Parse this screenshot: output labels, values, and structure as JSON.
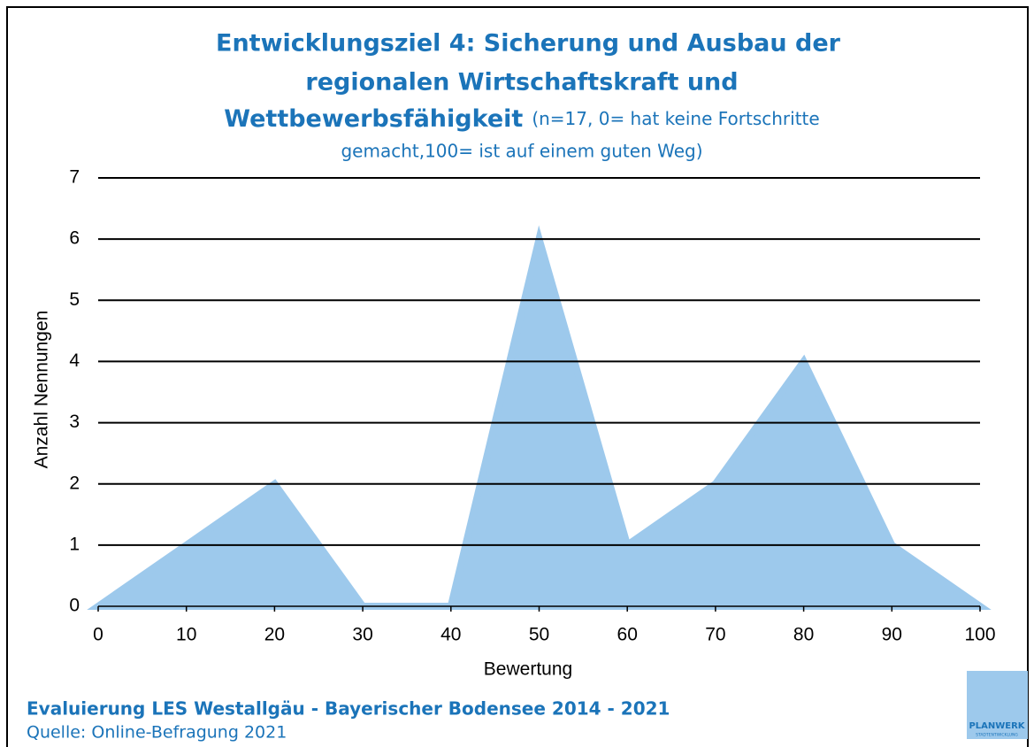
{
  "chart_data": {
    "type": "area",
    "title": [
      "Entwicklungsziel 4: Sicherung und Ausbau der",
      "regionalen Wirtschaftskraft und",
      "Wettbewerbsfähigkeit"
    ],
    "subtitle": [
      "(n=17, 0= hat keine Fortschritte",
      "gemacht,100= ist auf einem guten Weg)"
    ],
    "x_label": "Bewertung",
    "y_label": "Anzahl Nennungen",
    "x": [
      0,
      10,
      20,
      30,
      40,
      50,
      60,
      70,
      80,
      90,
      100
    ],
    "values": [
      0,
      1,
      2,
      0,
      0,
      6,
      1,
      2,
      4,
      1,
      0
    ],
    "color": "#9dc9ec",
    "xlim": [
      0,
      100
    ],
    "xticks": [
      0,
      10,
      20,
      30,
      40,
      50,
      60,
      70,
      80,
      90,
      100
    ],
    "ylim": [
      0,
      7
    ],
    "yticks": [
      0,
      1,
      2,
      3,
      4,
      5,
      6,
      7
    ],
    "grid": true
  },
  "footer": {
    "line1": "Evaluierung LES Westallgäu - Bayerischer Bodensee 2014 - 2021",
    "line2": "Quelle: Online-Befragung 2021"
  },
  "logo": {
    "name": "PLANWERK",
    "sub": "STADTENTWICKLUNG"
  }
}
